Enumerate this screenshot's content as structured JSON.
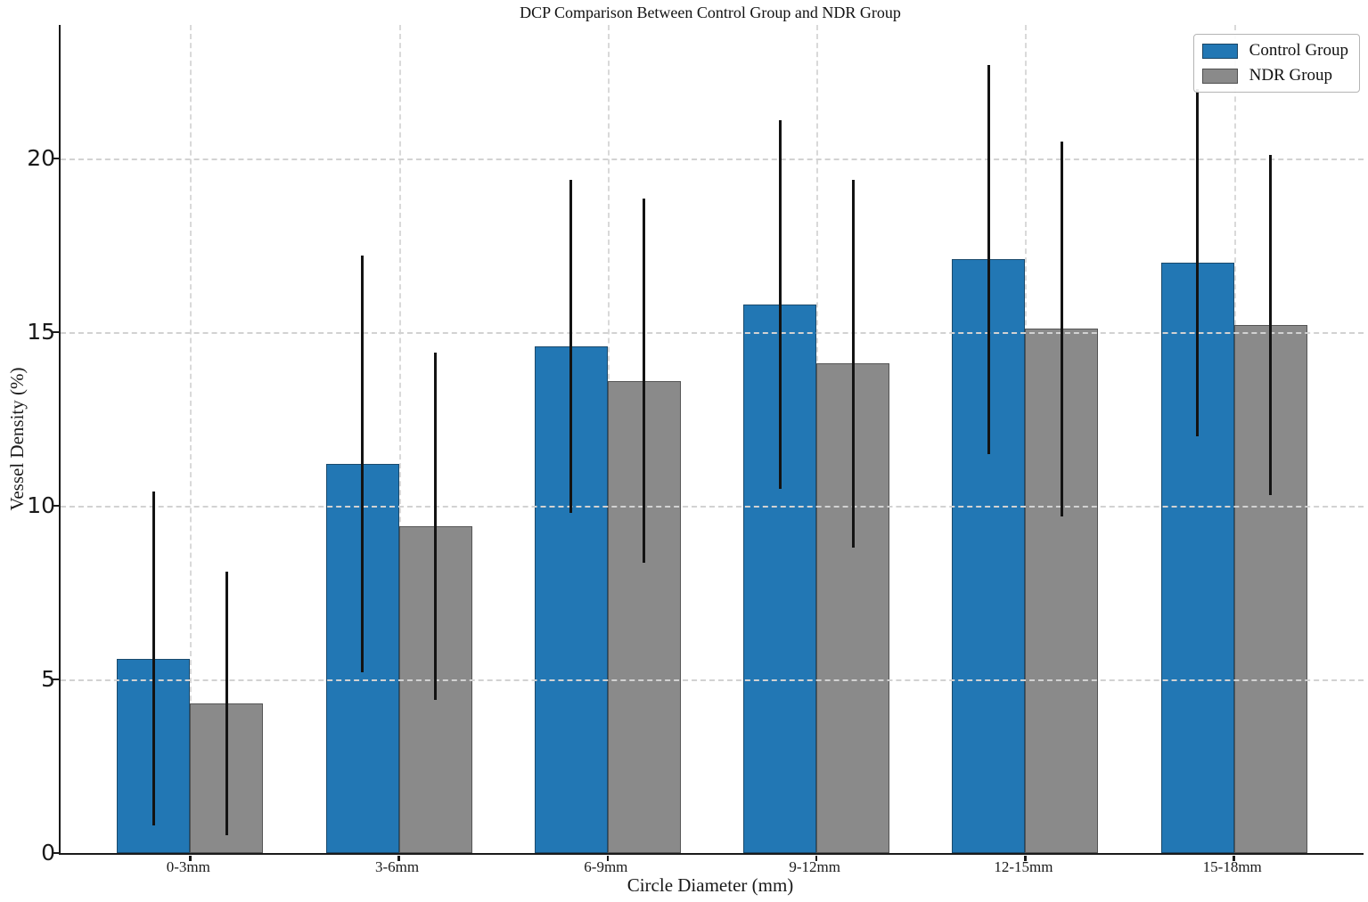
{
  "title": "DCP Comparison Between Control Group and NDR Group",
  "axes": {
    "xlabel": "Circle Diameter (mm)",
    "ylabel": "Vessel Density (%)"
  },
  "legend": {
    "items": [
      {
        "label": "Control Group",
        "color": "#2277b4"
      },
      {
        "label": "NDR Group",
        "color": "#8a8a8a"
      }
    ]
  },
  "chart_data": {
    "type": "bar",
    "title": "DCP Comparison Between Control Group and NDR Group",
    "xlabel": "Circle Diameter (mm)",
    "ylabel": "Vessel Density (%)",
    "categories": [
      "0-3mm",
      "3-6mm",
      "6-9mm",
      "9-12mm",
      "12-15mm",
      "15-18mm"
    ],
    "series": [
      {
        "name": "Control Group",
        "color": "#2277b4",
        "values": [
          5.6,
          11.2,
          14.6,
          15.8,
          17.1,
          17.0
        ],
        "errors": [
          4.8,
          6.0,
          4.8,
          5.3,
          5.6,
          5.0
        ]
      },
      {
        "name": "NDR Group",
        "color": "#8a8a8a",
        "values": [
          4.3,
          9.4,
          13.6,
          14.1,
          15.1,
          15.2
        ],
        "errors": [
          3.8,
          5.0,
          5.25,
          5.3,
          5.4,
          4.9
        ]
      }
    ],
    "error_bars": true,
    "ylim": [
      0,
      23.85
    ],
    "yticks": [
      0,
      5,
      10,
      15,
      20
    ],
    "grid": "both, dashed, light-gray, drawn above bars",
    "legend_position": "upper right"
  }
}
